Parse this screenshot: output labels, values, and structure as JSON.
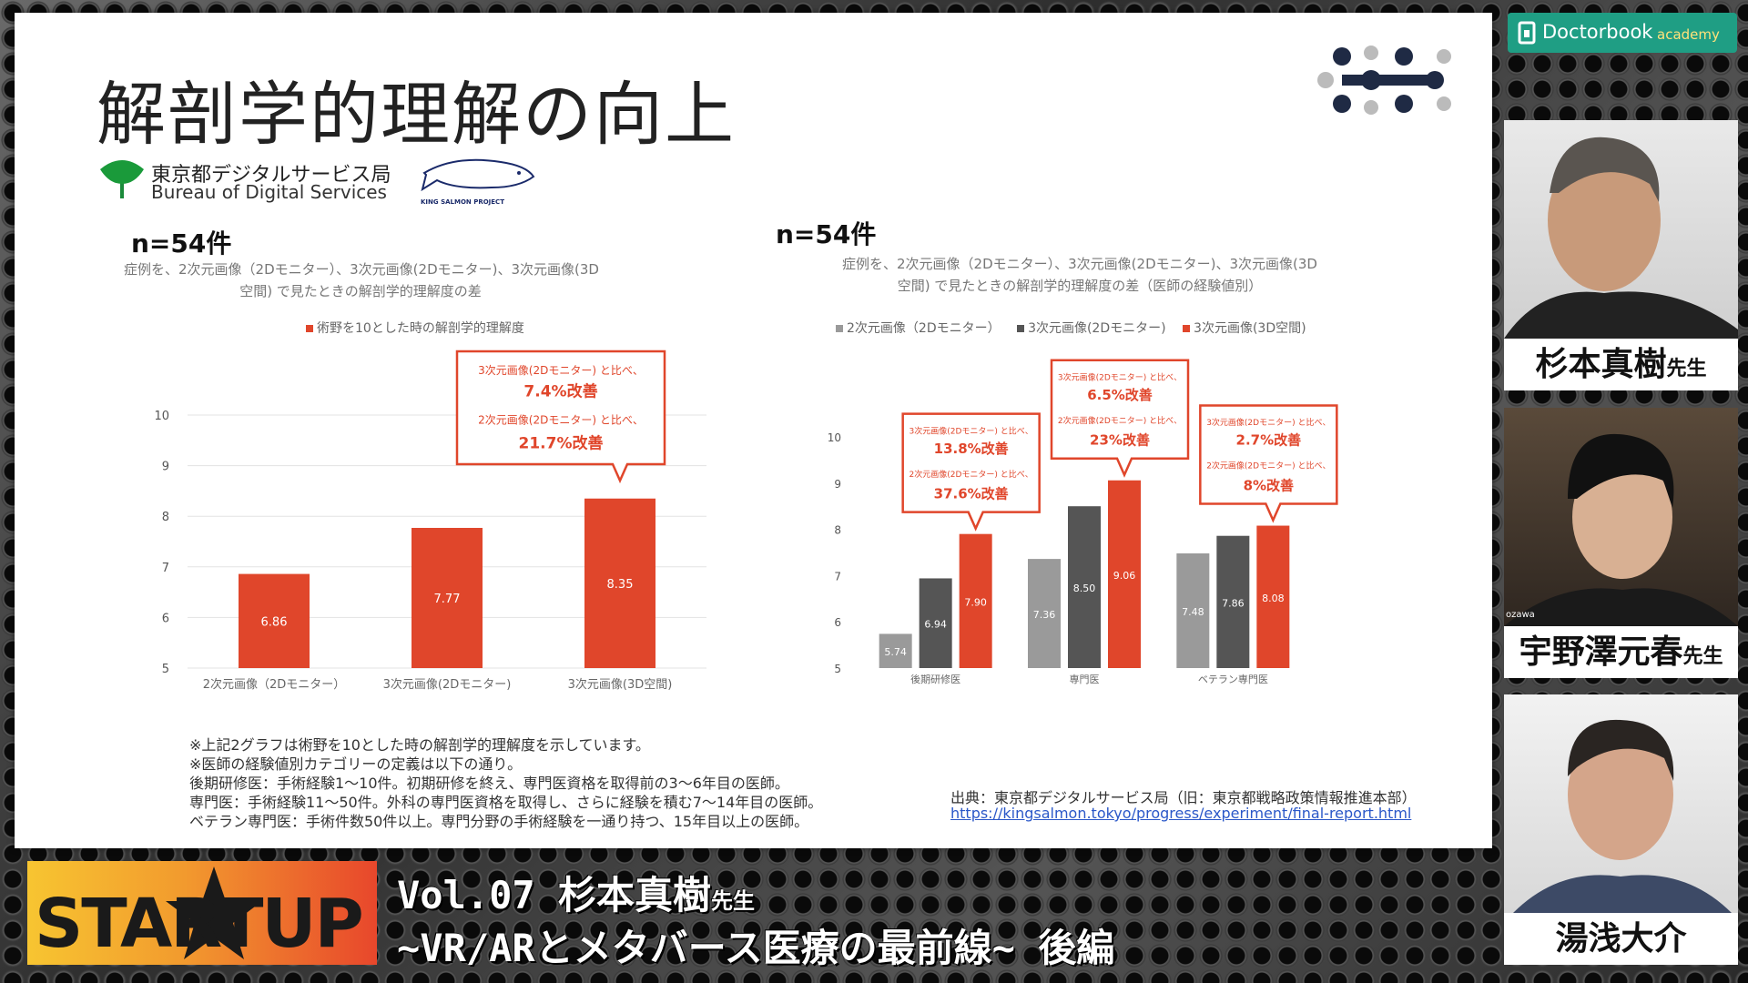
{
  "slide": {
    "title": "解剖学的理解の向上",
    "bureau_ja": "東京都デジタルサービス局",
    "bureau_en": "Bureau of Digital Services",
    "kingsalmon": "KING SALMON PROJECT",
    "notes": [
      "※上記2グラフは術野を10とした時の解剖学的理解度を示しています。",
      "※医師の経験値別カテゴリーの定義は以下の通り。",
      "後期研修医：手術経験1〜10件。初期研修を終え、専門医資格を取得前の3〜6年目の医師。",
      "専門医：手術経験11〜50件。外科の専門医資格を取得し、さらに経験を積む7〜14年目の医師。",
      "ベテラン専門医：手術件数50件以上。専門分野の手術経験を一通り持つ、15年目以上の医師。"
    ],
    "source": "出典：東京都デジタルサービス局（旧：東京都戦略政策情報推進本部）",
    "link": "https://kingsalmon.tokyo/progress/experiment/final-report.html"
  },
  "chart_data": [
    {
      "type": "bar",
      "n_label": "n=54件",
      "subtitle_line1": "症例を、2次元画像（2Dモニター）、3次元画像(2Dモニター)、3次元画像(3D",
      "subtitle_line2": "空間) で見たときの解剖学的理解度の差",
      "legend": "術野を10とした時の解剖学的理解度",
      "categories": [
        "2次元画像（2Dモニター）",
        "3次元画像(2Dモニター)",
        "3次元画像(3D空間)"
      ],
      "values": [
        6.86,
        7.77,
        8.35
      ],
      "value_labels": [
        "6.86",
        "7.77",
        "8.35"
      ],
      "ylim": [
        5,
        10
      ],
      "yticks": [
        "5",
        "6",
        "7",
        "8",
        "9",
        "10"
      ],
      "color": "#e0462b",
      "callout": {
        "line1": "3次元画像(2Dモニター) と比べ、",
        "val1": "7.4%改善",
        "line2": "2次元画像(2Dモニター) と比べ、",
        "val2": "21.7%改善"
      }
    },
    {
      "type": "bar",
      "n_label": "n=54件",
      "subtitle_line1": "症例を、2次元画像（2Dモニター）、3次元画像(2Dモニター)、3次元画像(3D",
      "subtitle_line2": "空間) で見たときの解剖学的理解度の差（医師の経験値別）",
      "ylim": [
        5,
        10
      ],
      "yticks": [
        "5",
        "6",
        "7",
        "8",
        "9",
        "10"
      ],
      "categories": [
        "後期研修医",
        "専門医",
        "ベテラン専門医"
      ],
      "series": [
        {
          "name": "2次元画像（2Dモニター）",
          "color": "#9a9a9a",
          "values": [
            5.74,
            7.36,
            7.48
          ],
          "labels": [
            "5.74",
            "7.36",
            "7.48"
          ]
        },
        {
          "name": "3次元画像(2Dモニター)",
          "color": "#555555",
          "values": [
            6.94,
            8.5,
            7.86
          ],
          "labels": [
            "6.94",
            "8.50",
            "7.86"
          ]
        },
        {
          "name": "3次元画像(3D空間)",
          "color": "#e0462b",
          "values": [
            7.9,
            9.06,
            8.08
          ],
          "labels": [
            "7.90",
            "9.06",
            "8.08"
          ]
        }
      ],
      "callouts": [
        {
          "line1": "3次元画像(2Dモニター) と比べ、",
          "val1": "13.8%改善",
          "line2": "2次元画像(2Dモニター) と比べ、",
          "val2": "37.6%改善"
        },
        {
          "line1": "3次元画像(2Dモニター) と比べ、",
          "val1": "6.5%改善",
          "line2": "2次元画像(2Dモニター) と比べ、",
          "val2": "23%改善"
        },
        {
          "line1": "3次元画像(2Dモニター) と比べ、",
          "val1": "2.7%改善",
          "line2": "2次元画像(2Dモニター) と比べ、",
          "val2": "8%改善"
        }
      ]
    }
  ],
  "sidebar": {
    "brand": "Doctorbook",
    "brand_sub": "academy",
    "participants": [
      {
        "name": "杉本真樹",
        "suffix": "先生"
      },
      {
        "name": "宇野澤元春",
        "suffix": "先生",
        "tag": "ozawa"
      },
      {
        "name": "湯浅大介",
        "suffix": ""
      }
    ]
  },
  "footer": {
    "logo": "STARTUP",
    "line1_a": "Vol.07 杉本真樹",
    "line1_b": "先生",
    "line2": "~VR/ARとメタバース医療の最前線~ 後編"
  },
  "colors": {
    "accent_red": "#e0462b",
    "brand_green": "#1f9e84"
  }
}
